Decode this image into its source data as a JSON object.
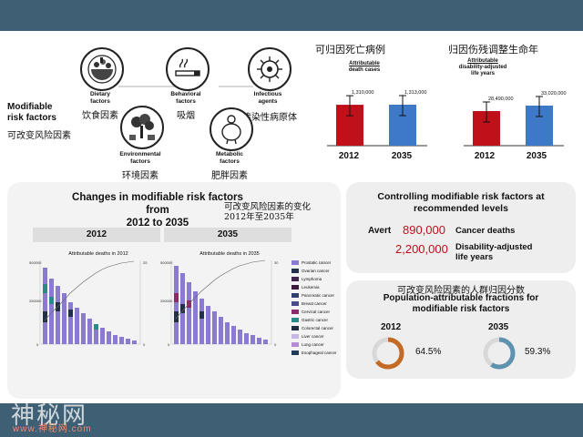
{
  "top_left": {
    "title_line1": "Modifiable",
    "title_line2": "risk factors",
    "title_cn": "可改变风险因素",
    "factors": [
      {
        "id": "dietary",
        "line1": "Dietary",
        "line2": "factors",
        "cn": "饮食因素",
        "icon": "food-bowl-icon"
      },
      {
        "id": "behavioral",
        "line1": "Behavioral",
        "line2": "factors",
        "cn": "吸烟",
        "icon": "cigarette-icon"
      },
      {
        "id": "infectious",
        "line1": "Infectious",
        "line2": "agents",
        "cn": "传染性病原体",
        "icon": "virus-icon"
      },
      {
        "id": "environmental",
        "line1": "Environmental",
        "line2": "factors",
        "cn": "环境因素",
        "icon": "pollution-tree-icon"
      },
      {
        "id": "metabolic",
        "line1": "Metabolic",
        "line2": "factors",
        "cn": "肥胖因素",
        "icon": "obese-person-icon"
      }
    ]
  },
  "death_cases_chart": {
    "title_cn": "可归因死亡病例",
    "label_line1": "Attributable",
    "label_line2": "death cases",
    "categories": [
      "2012",
      "2035"
    ],
    "values": [
      1310000,
      1313000
    ],
    "value_labels": [
      "1,310,000",
      "1,313,000"
    ],
    "colors": [
      "#c0101a",
      "#3e79c8"
    ]
  },
  "dalys_chart": {
    "title_cn": "归因伤残调整生命年",
    "label_line1": "Attributable",
    "label_line2": "disability-adjusted",
    "label_line3": "life years",
    "categories": [
      "2012",
      "2035"
    ],
    "values": [
      28490000,
      33020000
    ],
    "value_labels": [
      "28,490,000",
      "33,020,000"
    ],
    "colors": [
      "#c0101a",
      "#3e79c8"
    ]
  },
  "changes_panel": {
    "title_line1": "Changes in modifiable risk factors from",
    "title_line2": "2012 to 2035",
    "title_cn_line1": "可改变风险因素的变化",
    "title_cn_line2": "2012年至2035年",
    "tab_2012": "2012",
    "tab_2035": "2035",
    "chart_2012_title": "Attributable deaths in 2012",
    "chart_2035_title": "Attributable deaths in 2035",
    "legend": [
      {
        "name": "Prostatic cancer",
        "color": "#8a7bd1"
      },
      {
        "name": "Ovarian cancer",
        "color": "#23304a"
      },
      {
        "name": "Lymphoma",
        "color": "#402550"
      },
      {
        "name": "Leukemia",
        "color": "#3d1940"
      },
      {
        "name": "Pancreatic cancer",
        "color": "#2c3f6e"
      },
      {
        "name": "Breast cancer",
        "color": "#4a4a8a"
      },
      {
        "name": "Cervical cancer",
        "color": "#8a2a6a"
      },
      {
        "name": "Gastric cancer",
        "color": "#2a8a8a"
      },
      {
        "name": "Colorectal cancer",
        "color": "#1f2e3e"
      },
      {
        "name": "Liver cancer",
        "color": "#c8b7e6"
      },
      {
        "name": "Lung cancer",
        "color": "#b78ad6"
      },
      {
        "name": "Esophageal cancer",
        "color": "#1f3d5a"
      }
    ]
  },
  "controlling_panel": {
    "title_line1": "Controlling modifiable risk factors at",
    "title_line2": "recommended levels",
    "avert_label": "Avert",
    "avert_deaths_value": "890,000",
    "avert_deaths_label": "Cancer deaths",
    "avert_dalys_value": "2,200,000",
    "avert_dalys_label_line1": "Disability-adjusted",
    "avert_dalys_label_line2": "life years"
  },
  "paf_panel": {
    "title_cn": "可改变风险因素的人群归因分数",
    "title_line1": "Population-attributable fractions for",
    "title_line2": "modifiable risk factors",
    "year_2012": "2012",
    "value_2012": "64.5%",
    "fraction_2012": 0.645,
    "color_2012": "#c46a24",
    "year_2035": "2035",
    "value_2035": "59.3%",
    "fraction_2035": 0.593,
    "color_2035": "#5f92ae"
  },
  "watermark": {
    "logo": "神秘网",
    "url": "www.神秘网.com"
  }
}
